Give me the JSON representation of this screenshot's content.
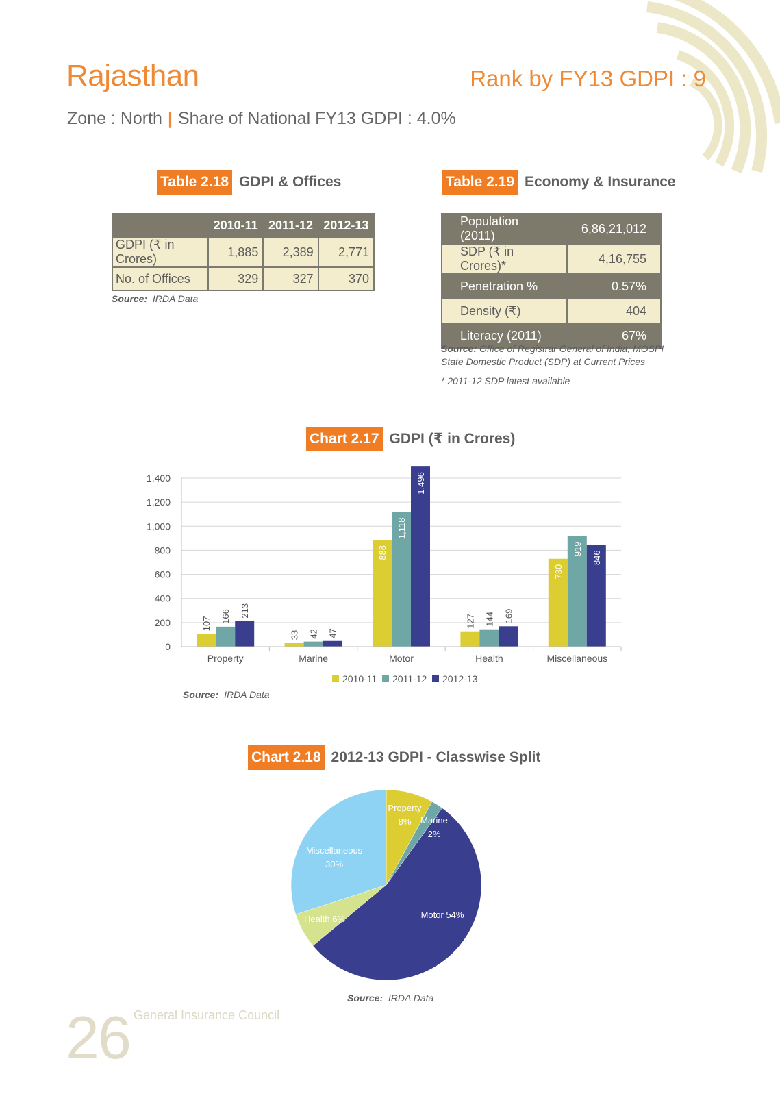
{
  "page": {
    "state": "Rajasthan",
    "rank": "Rank by FY13 GDPI : 9",
    "zone": "Zone : North",
    "share": "Share of National FY13 GDPI : 4.0%",
    "page_number": "26",
    "publisher": "General Insurance Council"
  },
  "table_2_18": {
    "tag": "Table 2.18",
    "title": "GDPI & Offices",
    "columns": [
      "",
      "2010-11",
      "2011-12",
      "2012-13"
    ],
    "rows": [
      {
        "label": "GDPI (₹ in Crores)",
        "values": [
          "1,885",
          "2,389",
          "2,771"
        ]
      },
      {
        "label": "No. of Offices",
        "values": [
          "329",
          "327",
          "370"
        ]
      }
    ],
    "source_label": "Source:",
    "source_text": "IRDA Data"
  },
  "table_2_19": {
    "tag": "Table 2.19",
    "title": "Economy & Insurance",
    "rows": [
      {
        "label": "Population (2011)",
        "value": "6,86,21,012"
      },
      {
        "label": "SDP (₹ in Crores)*",
        "value": "4,16,755"
      },
      {
        "label": "Penetration %",
        "value": "0.57%"
      },
      {
        "label": "Density (₹)",
        "value": "404"
      },
      {
        "label": "Literacy (2011)",
        "value": "67%"
      }
    ],
    "source_label": "Source:",
    "source_text": "Office of Registrar General of India; MOSPI",
    "source_line2": "State Domestic Product (SDP) at Current Prices",
    "note": "* 2011-12 SDP latest available"
  },
  "chart_data": [
    {
      "type": "bar",
      "tag": "Chart 2.17",
      "title": "GDPI (₹ in Crores)",
      "categories": [
        "Property",
        "Marine",
        "Motor",
        "Health",
        "Miscellaneous"
      ],
      "series": [
        {
          "name": "2010-11",
          "values": [
            107,
            33,
            888,
            127,
            730
          ],
          "color": "#dccd32"
        },
        {
          "name": "2011-12",
          "values": [
            166,
            42,
            1118,
            144,
            919
          ],
          "color": "#6fa6a6"
        },
        {
          "name": "2012-13",
          "values": [
            213,
            47,
            1496,
            169,
            846
          ],
          "color": "#3a3e8f"
        }
      ],
      "ylim": [
        0,
        1600
      ],
      "yticks": [
        "0",
        "200",
        "400",
        "600",
        "800",
        "1,000",
        "1,200",
        "1,400"
      ],
      "data_labels": [
        [
          "107",
          "33",
          "888",
          "127",
          "730"
        ],
        [
          "166",
          "42",
          "1,118",
          "144",
          "919"
        ],
        [
          "213",
          "47",
          "1,496",
          "169",
          "846"
        ]
      ],
      "grid": true,
      "legend": "bottom",
      "source_label": "Source:",
      "source_text": "IRDA Data"
    },
    {
      "type": "pie",
      "tag": "Chart 2.18",
      "title": "2012-13 GDPI - Classwise Split",
      "slices": [
        {
          "name": "Property",
          "label": "8%",
          "value": 8,
          "color": "#dccd32"
        },
        {
          "name": "Marine",
          "label": "2%",
          "value": 2,
          "color": "#6fa6a6"
        },
        {
          "name": "Motor",
          "label": "54%",
          "value": 54,
          "color": "#3a3e8f"
        },
        {
          "name": "Health",
          "label": "6%",
          "value": 6,
          "color": "#d5e38e"
        },
        {
          "name": "Miscellaneous",
          "label": "30%",
          "value": 30,
          "color": "#8ed3f3"
        }
      ],
      "source_label": "Source:",
      "source_text": "IRDA Data"
    }
  ]
}
